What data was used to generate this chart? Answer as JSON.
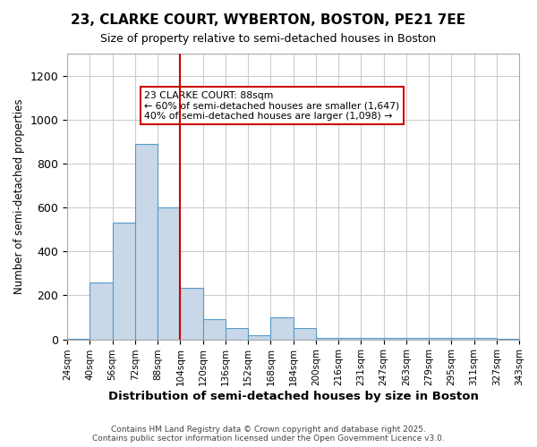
{
  "title": "23, CLARKE COURT, WYBERTON, BOSTON, PE21 7EE",
  "subtitle": "Size of property relative to semi-detached houses in Boston",
  "xlabel": "Distribution of semi-detached houses by size in Boston",
  "ylabel": "Number of semi-detached properties",
  "bar_values": [
    3,
    260,
    530,
    890,
    600,
    235,
    90,
    50,
    20,
    100,
    50,
    5,
    5,
    5,
    5,
    5,
    5,
    5,
    5,
    2
  ],
  "bin_labels": [
    "24sqm",
    "40sqm",
    "56sqm",
    "72sqm",
    "88sqm",
    "104sqm",
    "120sqm",
    "136sqm",
    "152sqm",
    "168sqm",
    "184sqm",
    "200sqm",
    "216sqm",
    "231sqm",
    "247sqm",
    "263sqm",
    "279sqm",
    "295sqm",
    "311sqm",
    "327sqm",
    "343sqm"
  ],
  "bar_color": "#c8d8e8",
  "bar_edge_color": "#5599cc",
  "red_line_bin_index": 4,
  "annotation_text": "23 CLARKE COURT: 88sqm\n← 60% of semi-detached houses are smaller (1,647)\n40% of semi-detached houses are larger (1,098) →",
  "annotation_box_color": "#ffffff",
  "annotation_box_edge": "#cc0000",
  "footer_text": "Contains HM Land Registry data © Crown copyright and database right 2025.\nContains public sector information licensed under the Open Government Licence v3.0.",
  "ylim": [
    0,
    1300
  ],
  "yticks": [
    0,
    200,
    400,
    600,
    800,
    1000,
    1200
  ],
  "background_color": "#ffffff",
  "grid_color": "#cccccc"
}
